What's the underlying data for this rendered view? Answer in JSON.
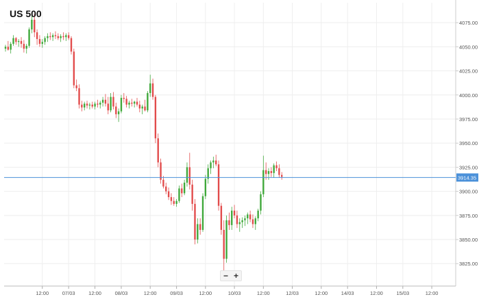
{
  "title": "US 500",
  "zoom": {
    "out_label": "−",
    "in_label": "+"
  },
  "colors": {
    "up": "#3fa83a",
    "down": "#e24b4b",
    "price_line": "#4a90d9",
    "price_tag": "#4a90d9",
    "grid": "#eeeeee"
  },
  "chart_data": {
    "type": "candlestick",
    "title": "US 500",
    "xlabel": "",
    "ylabel": "",
    "ylim": [
      3806,
      4090
    ],
    "grid": true,
    "current_price": 3914.35,
    "current_price_label": "3914.35",
    "y_ticks": [
      "4075.00",
      "4050.00",
      "4025.00",
      "4000.00",
      "3975.00",
      "3950.00",
      "3925.00",
      "3900.00",
      "3875.00",
      "3850.00",
      "3825.00"
    ],
    "y_tick_values": [
      4075,
      4050,
      4025,
      4000,
      3975,
      3950,
      3925,
      3900,
      3875,
      3850,
      3825
    ],
    "x_ticks": [
      "12:00",
      "07/03",
      "12:00",
      "08/03",
      "12:00",
      "09/03",
      "12:00",
      "10/03",
      "12:00",
      "12/03",
      "12:00",
      "14/03",
      "12:00",
      "15/03",
      "12:00"
    ],
    "x_tick_index": [
      14,
      24,
      34,
      44,
      55,
      65,
      76,
      87,
      98,
      109,
      120,
      130,
      141,
      151,
      162
    ],
    "candles": [
      [
        4048,
        4052,
        4045,
        4050
      ],
      [
        4050,
        4056,
        4046,
        4047
      ],
      [
        4047,
        4055,
        4043,
        4053
      ],
      [
        4053,
        4062,
        4051,
        4059
      ],
      [
        4059,
        4060,
        4052,
        4055
      ],
      [
        4055,
        4058,
        4050,
        4056
      ],
      [
        4056,
        4060,
        4049,
        4053
      ],
      [
        4053,
        4057,
        4044,
        4048
      ],
      [
        4048,
        4053,
        4043,
        4051
      ],
      [
        4051,
        4070,
        4049,
        4068
      ],
      [
        4068,
        4083,
        4064,
        4078
      ],
      [
        4078,
        4084,
        4060,
        4065
      ],
      [
        4065,
        4068,
        4052,
        4058
      ],
      [
        4058,
        4062,
        4050,
        4053
      ],
      [
        4053,
        4058,
        4049,
        4055
      ],
      [
        4055,
        4061,
        4052,
        4059
      ],
      [
        4059,
        4064,
        4055,
        4061
      ],
      [
        4061,
        4065,
        4057,
        4060
      ],
      [
        4060,
        4064,
        4056,
        4062
      ],
      [
        4062,
        4066,
        4058,
        4061
      ],
      [
        4061,
        4064,
        4057,
        4059
      ],
      [
        4059,
        4063,
        4055,
        4061
      ],
      [
        4061,
        4065,
        4057,
        4060
      ],
      [
        4060,
        4064,
        4056,
        4062
      ],
      [
        4062,
        4065,
        4057,
        4059
      ],
      [
        4059,
        4061,
        4042,
        4045
      ],
      [
        4045,
        4048,
        4007,
        4010
      ],
      [
        4010,
        4016,
        4004,
        4007
      ],
      [
        4007,
        4011,
        3986,
        3990
      ],
      [
        3990,
        3994,
        3983,
        3987
      ],
      [
        3987,
        3993,
        3984,
        3991
      ],
      [
        3991,
        3994,
        3986,
        3989
      ],
      [
        3989,
        3992,
        3985,
        3990
      ],
      [
        3990,
        3993,
        3986,
        3988
      ],
      [
        3988,
        3993,
        3985,
        3991
      ],
      [
        3991,
        3995,
        3987,
        3990
      ],
      [
        3990,
        3994,
        3986,
        3992
      ],
      [
        3992,
        3998,
        3988,
        3995
      ],
      [
        3995,
        4001,
        3988,
        3991
      ],
      [
        3991,
        3998,
        3980,
        3984
      ],
      [
        3984,
        4002,
        3982,
        3998
      ],
      [
        3998,
        4003,
        3985,
        3988
      ],
      [
        3988,
        3992,
        3976,
        3980
      ],
      [
        3980,
        3986,
        3972,
        3983
      ],
      [
        3983,
        4000,
        3981,
        3997
      ],
      [
        3997,
        4002,
        3992,
        3996
      ],
      [
        3996,
        3999,
        3987,
        3990
      ],
      [
        3990,
        3994,
        3986,
        3992
      ],
      [
        3992,
        3996,
        3988,
        3991
      ],
      [
        3991,
        3994,
        3987,
        3993
      ],
      [
        3993,
        3997,
        3988,
        3990
      ],
      [
        3990,
        3994,
        3982,
        3986
      ],
      [
        3986,
        3990,
        3980,
        3988
      ],
      [
        3988,
        3995,
        3983,
        3984
      ],
      [
        3984,
        4004,
        3982,
        4002
      ],
      [
        4002,
        4021,
        3998,
        4012
      ],
      [
        4012,
        4017,
        3995,
        3998
      ],
      [
        3998,
        4000,
        3950,
        3955
      ],
      [
        3955,
        3960,
        3925,
        3930
      ],
      [
        3930,
        3934,
        3908,
        3912
      ],
      [
        3912,
        3916,
        3903,
        3905
      ],
      [
        3905,
        3909,
        3897,
        3900
      ],
      [
        3900,
        3904,
        3891,
        3894
      ],
      [
        3894,
        3898,
        3886,
        3890
      ],
      [
        3890,
        3894,
        3885,
        3887
      ],
      [
        3887,
        3892,
        3884,
        3890
      ],
      [
        3890,
        3906,
        3888,
        3903
      ],
      [
        3903,
        3908,
        3894,
        3898
      ],
      [
        3898,
        3912,
        3896,
        3909
      ],
      [
        3909,
        3930,
        3905,
        3925
      ],
      [
        3925,
        3940,
        3902,
        3907
      ],
      [
        3907,
        3912,
        3880,
        3887
      ],
      [
        3887,
        3892,
        3845,
        3850
      ],
      [
        3850,
        3872,
        3846,
        3866
      ],
      [
        3866,
        3872,
        3855,
        3860
      ],
      [
        3860,
        3898,
        3858,
        3895
      ],
      [
        3895,
        3917,
        3892,
        3913
      ],
      [
        3913,
        3928,
        3908,
        3924
      ],
      [
        3924,
        3932,
        3918,
        3930
      ],
      [
        3930,
        3936,
        3924,
        3932
      ],
      [
        3932,
        3938,
        3926,
        3928
      ],
      [
        3928,
        3932,
        3880,
        3885
      ],
      [
        3885,
        3888,
        3855,
        3860
      ],
      [
        3860,
        3870,
        3812,
        3830
      ],
      [
        3830,
        3875,
        3826,
        3870
      ],
      [
        3870,
        3878,
        3860,
        3865
      ],
      [
        3865,
        3884,
        3860,
        3880
      ],
      [
        3880,
        3886,
        3872,
        3875
      ],
      [
        3875,
        3880,
        3862,
        3866
      ],
      [
        3866,
        3872,
        3858,
        3868
      ],
      [
        3868,
        3873,
        3862,
        3870
      ],
      [
        3870,
        3875,
        3864,
        3872
      ],
      [
        3872,
        3878,
        3866,
        3876
      ],
      [
        3876,
        3880,
        3868,
        3871
      ],
      [
        3871,
        3876,
        3862,
        3866
      ],
      [
        3866,
        3874,
        3860,
        3872
      ],
      [
        3872,
        3882,
        3869,
        3880
      ],
      [
        3880,
        3900,
        3876,
        3897
      ],
      [
        3897,
        3937,
        3894,
        3922
      ],
      [
        3922,
        3930,
        3912,
        3918
      ],
      [
        3918,
        3924,
        3912,
        3921
      ],
      [
        3921,
        3925,
        3915,
        3919
      ],
      [
        3919,
        3929,
        3914,
        3927
      ],
      [
        3927,
        3931,
        3921,
        3924
      ],
      [
        3924,
        3928,
        3914,
        3917
      ],
      [
        3917,
        3920,
        3912,
        3915
      ]
    ]
  }
}
